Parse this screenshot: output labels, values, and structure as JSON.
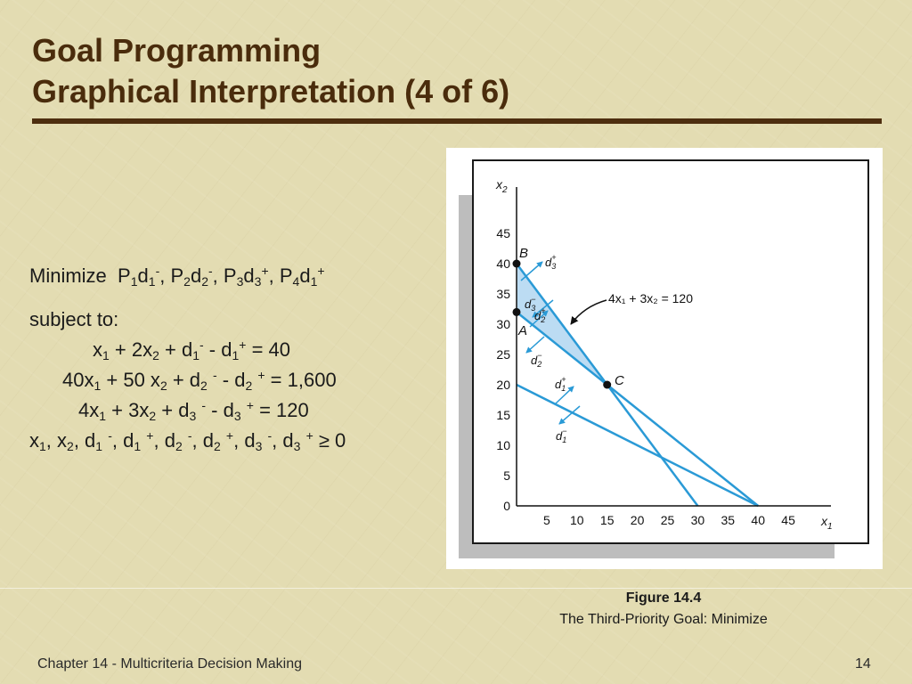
{
  "slide": {
    "title_line1": "Goal Programming",
    "title_line2": "Graphical Interpretation (4 of 6)"
  },
  "model": {
    "objective": {
      "verb": "Minimize",
      "terms": [
        {
          "p": "P",
          "p_sub": "1",
          "d": "d",
          "d_sub": "1",
          "sign": "-"
        },
        {
          "p": "P",
          "p_sub": "2",
          "d": "d",
          "d_sub": "2",
          "sign": "-"
        },
        {
          "p": "P",
          "p_sub": "3",
          "d": "d",
          "d_sub": "3",
          "sign": "+"
        },
        {
          "p": "P",
          "p_sub": "4",
          "d": "d",
          "d_sub": "1",
          "sign": "+"
        }
      ]
    },
    "subject_to": "subject to:",
    "constraints": [
      {
        "lhs_a": "x",
        "a_sub": "1",
        "mid": " + 2x",
        "b_sub": "2",
        "d_sub": "1",
        "rhs": " = 40"
      },
      {
        "lhs_a": "40x",
        "a_sub": "1",
        "mid": " + 50 x",
        "b_sub": "2",
        "d_sub": "2",
        "rhs": " = 1,600"
      },
      {
        "lhs_a": "4x",
        "a_sub": "1",
        "mid": " + 3x",
        "b_sub": "2",
        "d_sub": "3",
        "rhs": " = 120"
      }
    ],
    "nonnegativity_rhs": "≥ 0"
  },
  "figure": {
    "axis": {
      "y_label": "x",
      "y_label_sub": "2",
      "x_label": "x",
      "x_label_sub": "1",
      "y_ticks": [
        "0",
        "5",
        "10",
        "15",
        "20",
        "25",
        "30",
        "35",
        "40",
        "45"
      ],
      "x_ticks": [
        "5",
        "10",
        "15",
        "20",
        "25",
        "30",
        "35",
        "40",
        "45"
      ]
    },
    "point_labels": {
      "a": "A",
      "b": "B",
      "c": "C"
    },
    "line_label": "4x₁ + 3x₂ = 120",
    "colors": {
      "line": "#2a9ad6",
      "fill": "#bcdcf3",
      "point": "#111111"
    },
    "caption_title": "Figure 14.4",
    "caption_text": "The Third-Priority Goal:  Minimize"
  },
  "chart_data": {
    "type": "line",
    "title": "",
    "xlabel": "x1",
    "ylabel": "x2",
    "xlim": [
      0,
      45
    ],
    "ylim": [
      0,
      45
    ],
    "grid": false,
    "series": [
      {
        "name": "x1 + 2x2 = 40",
        "x": [
          0,
          40
        ],
        "y": [
          20,
          0
        ]
      },
      {
        "name": "40x1 + 50x2 = 1,600",
        "x": [
          0,
          40
        ],
        "y": [
          32,
          0
        ]
      },
      {
        "name": "4x1 + 3x2 = 120",
        "x": [
          0,
          30
        ],
        "y": [
          40,
          0
        ]
      }
    ],
    "points": [
      {
        "label": "A",
        "x": 0,
        "y": 32
      },
      {
        "label": "B",
        "x": 0,
        "y": 40
      },
      {
        "label": "C",
        "x": 15,
        "y": 20
      }
    ],
    "shaded_region": [
      [
        0,
        40
      ],
      [
        0,
        32
      ],
      [
        15,
        20
      ]
    ]
  },
  "footer": {
    "chapter": "Chapter 14 - Multicriteria Decision Making",
    "page": "14"
  }
}
